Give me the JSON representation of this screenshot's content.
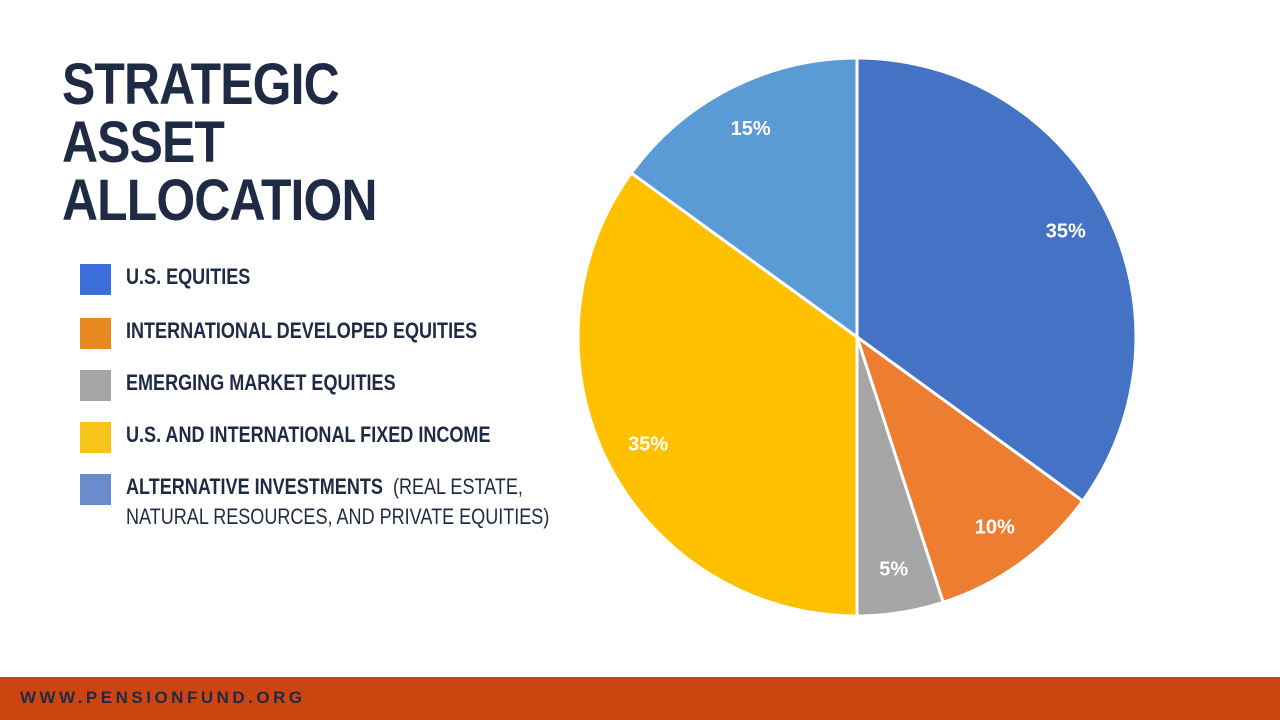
{
  "slide": {
    "title_line1": "STRATEGIC ASSET",
    "title_line2": "ALLOCATION",
    "footer_url": "WWW.PENSIONFUND.ORG"
  },
  "legend": [
    {
      "label": "U.S. EQUITIES",
      "color": "#3b6fdb"
    },
    {
      "label": "INTERNATIONAL DEVELOPED EQUITIES",
      "color": "#e8891f"
    },
    {
      "label": "EMERGING MARKET EQUITIES",
      "color": "#a5a5a5"
    },
    {
      "label": "U.S. AND INTERNATIONAL FIXED INCOME",
      "color": "#f5c518"
    },
    {
      "label": "ALTERNATIVE INVESTMENTS",
      "note_line1": "(REAL ESTATE,",
      "note_line2": "NATURAL RESOURCES, AND PRIVATE EQUITIES)",
      "color": "#6b8ccc"
    }
  ],
  "chart_data": {
    "type": "pie",
    "start": "12 o'clock, clockwise",
    "slices": [
      {
        "category": "U.S. EQUITIES",
        "value": 35,
        "label": "35%",
        "color": "#4472c4"
      },
      {
        "category": "INTERNATIONAL DEVELOPED EQUITIES",
        "value": 10,
        "label": "10%",
        "color": "#ed7d31"
      },
      {
        "category": "EMERGING MARKET EQUITIES",
        "value": 5,
        "label": "5%",
        "color": "#a5a5a5"
      },
      {
        "category": "U.S. AND INTERNATIONAL FIXED INCOME",
        "value": 35,
        "label": "35%",
        "color": "#ffc000"
      },
      {
        "category": "ALTERNATIVE INVESTMENTS",
        "value": 15,
        "label": "15%",
        "color": "#5b9bd5"
      }
    ]
  }
}
